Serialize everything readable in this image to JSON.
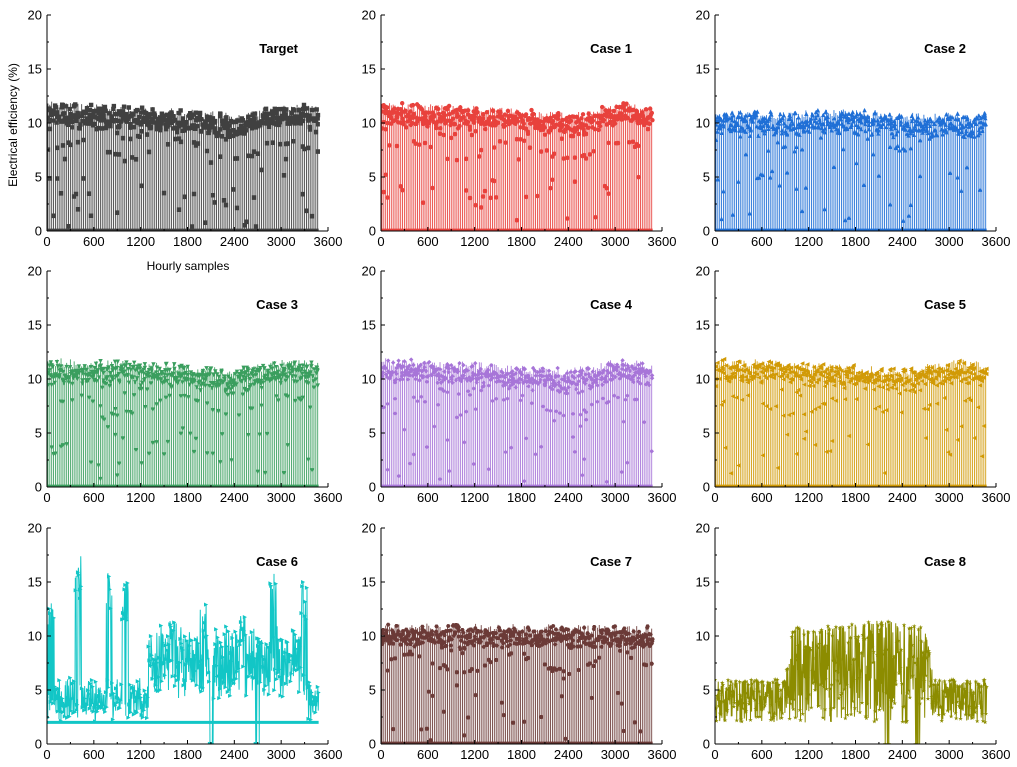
{
  "figure": {
    "ylabel": "Electrical efficiency (%)",
    "xlabel": "Hourly samples"
  },
  "chart_data": [
    {
      "type": "scatter",
      "title": "Target",
      "color": "#404040",
      "marker": "square",
      "xlim": [
        0,
        3600
      ],
      "ylim": [
        0,
        20
      ],
      "xticks": [
        0,
        600,
        1200,
        1800,
        2400,
        3000,
        3600
      ],
      "yticks": [
        0,
        5,
        10,
        15,
        20
      ],
      "data_range": [
        0,
        3480
      ],
      "upper_band": [
        [
          0,
          12
        ],
        [
          1200,
          11.6
        ],
        [
          2400,
          11.0
        ],
        [
          2800,
          11.5
        ],
        [
          3100,
          12.0
        ],
        [
          3480,
          11.5
        ]
      ],
      "mid_levels": [
        7.5,
        9.5
      ],
      "lows": [
        0.3,
        1.0,
        3.0
      ],
      "n_points": 3480
    },
    {
      "type": "scatter",
      "title": "Case 1",
      "color": "#e8413c",
      "marker": "circle",
      "xlim": [
        0,
        3600
      ],
      "ylim": [
        0,
        20
      ],
      "xticks": [
        0,
        600,
        1200,
        1800,
        2400,
        3000,
        3600
      ],
      "yticks": [
        0,
        5,
        10,
        15,
        20
      ],
      "data_range": [
        0,
        3480
      ],
      "upper_band": [
        [
          0,
          12
        ],
        [
          1200,
          11.6
        ],
        [
          2400,
          11.0
        ],
        [
          2800,
          11.5
        ],
        [
          3100,
          12.0
        ],
        [
          3480,
          11.5
        ]
      ],
      "mid_levels": [
        7.5,
        9.5
      ],
      "lows": [
        0.3,
        1.0,
        3.0
      ],
      "n_points": 3480
    },
    {
      "type": "scatter",
      "title": "Case 2",
      "color": "#1f6fd6",
      "marker": "triangle-up",
      "xlim": [
        0,
        3600
      ],
      "ylim": [
        0,
        20
      ],
      "xticks": [
        0,
        600,
        1200,
        1800,
        2400,
        3000,
        3600
      ],
      "yticks": [
        0,
        5,
        10,
        15,
        20
      ],
      "data_range": [
        0,
        3480
      ],
      "upper_band": [
        [
          0,
          11.1
        ],
        [
          1200,
          11.2
        ],
        [
          1900,
          11.3
        ],
        [
          2400,
          11.0
        ],
        [
          3480,
          11.0
        ]
      ],
      "mid_levels": [
        8.5,
        10.0
      ],
      "lows": [
        0.3,
        1.0,
        4.0
      ],
      "n_points": 3480
    },
    {
      "type": "scatter",
      "title": "Case 3",
      "color": "#3a9e5e",
      "marker": "triangle-down",
      "xlim": [
        0,
        3600
      ],
      "ylim": [
        0,
        20
      ],
      "xticks": [
        0,
        600,
        1200,
        1800,
        2400,
        3000,
        3600
      ],
      "yticks": [
        0,
        5,
        10,
        15,
        20
      ],
      "data_range": [
        0,
        3480
      ],
      "upper_band": [
        [
          0,
          12
        ],
        [
          1200,
          11.6
        ],
        [
          2400,
          11.0
        ],
        [
          2800,
          11.5
        ],
        [
          3100,
          12.0
        ],
        [
          3480,
          11.5
        ]
      ],
      "mid_levels": [
        7.5,
        9.5
      ],
      "lows": [
        0.3,
        1.0,
        3.0
      ],
      "n_points": 3480
    },
    {
      "type": "scatter",
      "title": "Case 4",
      "color": "#a775d8",
      "marker": "diamond",
      "xlim": [
        0,
        3600
      ],
      "ylim": [
        0,
        20
      ],
      "xticks": [
        0,
        600,
        1200,
        1800,
        2400,
        3000,
        3600
      ],
      "yticks": [
        0,
        5,
        10,
        15,
        20
      ],
      "data_range": [
        0,
        3480
      ],
      "upper_band": [
        [
          0,
          12
        ],
        [
          1200,
          11.6
        ],
        [
          2400,
          11.0
        ],
        [
          2800,
          11.5
        ],
        [
          3100,
          12.0
        ],
        [
          3480,
          11.5
        ]
      ],
      "mid_levels": [
        7.5,
        9.5
      ],
      "lows": [
        0.3,
        1.0,
        3.0
      ],
      "n_points": 3480
    },
    {
      "type": "scatter",
      "title": "Case 5",
      "color": "#d19a06",
      "marker": "triangle-left",
      "xlim": [
        0,
        3600
      ],
      "ylim": [
        0,
        20
      ],
      "xticks": [
        0,
        600,
        1200,
        1800,
        2400,
        3000,
        3600
      ],
      "yticks": [
        0,
        5,
        10,
        15,
        20
      ],
      "data_range": [
        0,
        3480
      ],
      "upper_band": [
        [
          0,
          12
        ],
        [
          1200,
          11.6
        ],
        [
          2400,
          11.0
        ],
        [
          2800,
          11.5
        ],
        [
          3100,
          12.0
        ],
        [
          3480,
          11.5
        ]
      ],
      "mid_levels": [
        7.5,
        9.5
      ],
      "lows": [
        0.3,
        1.0,
        3.0
      ],
      "n_points": 3480
    },
    {
      "type": "line",
      "title": "Case 6",
      "color": "#12c6c6",
      "marker": "triangle-right",
      "xlim": [
        0,
        3600
      ],
      "ylim": [
        0,
        20
      ],
      "xticks": [
        0,
        600,
        1200,
        1800,
        2400,
        3000,
        3600
      ],
      "yticks": [
        0,
        5,
        10,
        15,
        20
      ],
      "data_range": [
        0,
        3480
      ],
      "baseline": 2.0,
      "peaks": [
        [
          50,
          14
        ],
        [
          400,
          17.5
        ],
        [
          800,
          16
        ],
        [
          1000,
          15
        ],
        [
          1600,
          12
        ],
        [
          2000,
          13
        ],
        [
          2500,
          12
        ],
        [
          2900,
          16
        ],
        [
          3300,
          15
        ]
      ],
      "dips": [
        [
          2100,
          0
        ],
        [
          2700,
          0
        ]
      ],
      "n_points": 3480
    },
    {
      "type": "scatter",
      "title": "Case 7",
      "color": "#6b3a37",
      "marker": "hexagon",
      "xlim": [
        0,
        3600
      ],
      "ylim": [
        0,
        20
      ],
      "xticks": [
        0,
        600,
        1200,
        1800,
        2400,
        3000,
        3600
      ],
      "yticks": [
        0,
        5,
        10,
        15,
        20
      ],
      "data_range": [
        0,
        3480
      ],
      "upper_band": [
        [
          0,
          11.2
        ],
        [
          1800,
          11.1
        ],
        [
          3480,
          11.0
        ]
      ],
      "mid_levels": [
        7.5,
        9.5
      ],
      "lows": [
        0.3,
        1.0,
        3.0
      ],
      "n_points": 3480
    },
    {
      "type": "line",
      "title": "Case 8",
      "color": "#8c8c00",
      "marker": "star",
      "xlim": [
        0,
        3600
      ],
      "ylim": [
        0,
        20
      ],
      "xticks": [
        0,
        600,
        1200,
        1800,
        2400,
        3000,
        3600
      ],
      "yticks": [
        0,
        5,
        10,
        15,
        20
      ],
      "data_range": [
        0,
        3480
      ],
      "envelope": [
        [
          0,
          6
        ],
        [
          900,
          6
        ],
        [
          1000,
          11
        ],
        [
          1250,
          10.5
        ],
        [
          1300,
          10.8
        ],
        [
          2200,
          11.5
        ],
        [
          2700,
          10.8
        ],
        [
          2800,
          6
        ],
        [
          3480,
          6
        ]
      ],
      "baseline": 2.0,
      "dips": [
        [
          2200,
          0
        ],
        [
          2600,
          0
        ]
      ],
      "n_points": 3480
    }
  ]
}
